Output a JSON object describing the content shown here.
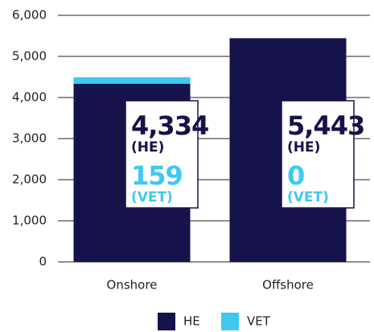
{
  "chart_data": {
    "type": "stacked_bar",
    "categories": [
      "Onshore",
      "Offshore"
    ],
    "series": [
      {
        "name": "HE",
        "color": "#16124a",
        "values": [
          4334,
          5443
        ],
        "value_labels": [
          "4,334",
          "5,443"
        ],
        "label_note": "(HE)"
      },
      {
        "name": "VET",
        "color": "#3ec8f2",
        "values": [
          159,
          0
        ],
        "value_labels": [
          "159",
          "0"
        ],
        "label_note": "(VET)"
      }
    ],
    "ylim": [
      0,
      6000
    ],
    "yticks": [
      0,
      {
        "value": 1000,
        "label": "1,000"
      },
      {
        "value": 2000,
        "label": "2,000"
      },
      {
        "value": 3000,
        "label": "3,000"
      },
      {
        "value": 4000,
        "label": "4,000"
      },
      {
        "value": 5000,
        "label": "5,000"
      },
      {
        "value": 6000,
        "label": "6,000"
      }
    ],
    "grid": true,
    "legend": "bottom"
  }
}
